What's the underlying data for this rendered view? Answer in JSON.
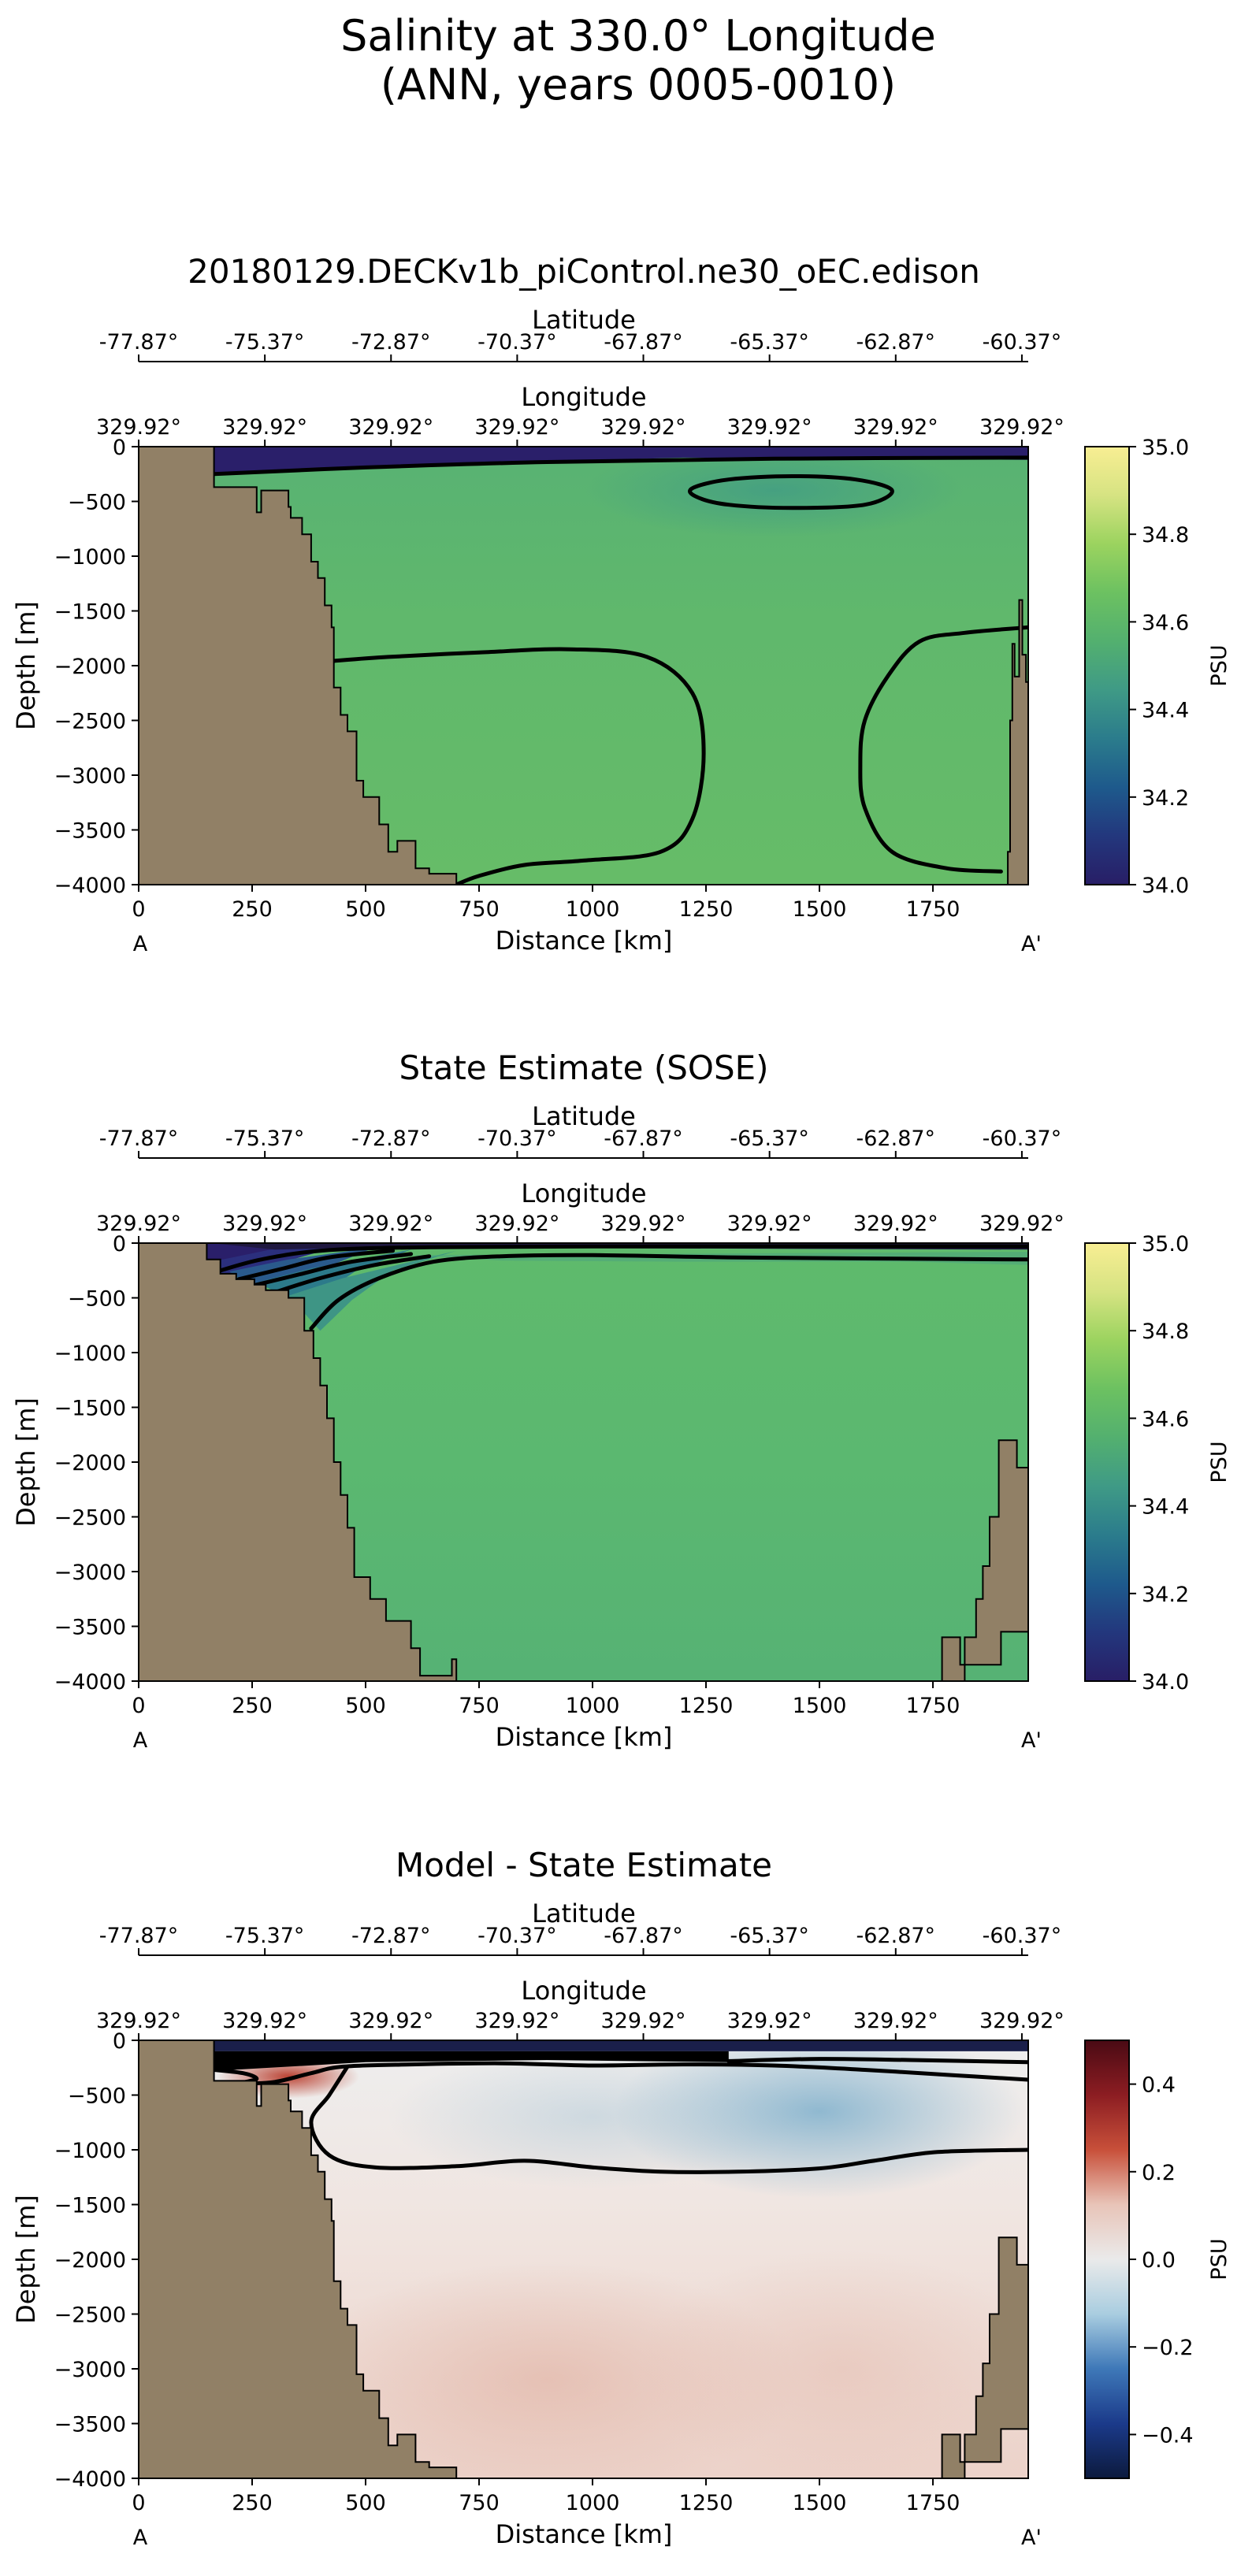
{
  "suptitle": [
    "Salinity at 330.0° Longitude",
    "(ANN, years 0005-0010)"
  ],
  "colors": {
    "bathymetry": "#918066",
    "topo_ocean_cmap": [
      "#281e66",
      "#23377d",
      "#1e5a8c",
      "#2b7c8c",
      "#3f9a86",
      "#53b06f",
      "#6cc161",
      "#9bd35f",
      "#d6e382",
      "#f8ee93"
    ],
    "diff_cmap": [
      "#0c1a3d",
      "#1b3a8a",
      "#3e78b8",
      "#a9cde0",
      "#eaeaea",
      "#e8c4b8",
      "#c8503a",
      "#8c1d22",
      "#4a0a14"
    ]
  },
  "chart_data": [
    {
      "type": "heatmap",
      "title": "20180129.DECKv1b_piControl.ne30_oEC.edison",
      "xlabel": "Distance [km]",
      "ylabel": "Depth [m]",
      "top_axis1_label": "Latitude",
      "top_axis2_label": "Longitude",
      "xlim": [
        0,
        1960
      ],
      "ylim": [
        -4000,
        0
      ],
      "xticks": [
        "0",
        "250",
        "500",
        "750",
        "1000",
        "1250",
        "1500",
        "1750"
      ],
      "yticks": [
        "0",
        "−500",
        "−1000",
        "−1500",
        "−2000",
        "−2500",
        "−3000",
        "−3500",
        "−4000"
      ],
      "lat_ticks": [
        "-77.87°",
        "-75.37°",
        "-72.87°",
        "-70.37°",
        "-67.87°",
        "-65.37°",
        "-62.87°",
        "-60.37°"
      ],
      "lon_ticks": [
        "329.92°",
        "329.92°",
        "329.92°",
        "329.92°",
        "329.92°",
        "329.92°",
        "329.92°",
        "329.92°"
      ],
      "section_start": "A",
      "section_end": "A'",
      "colorbar": {
        "label": "PSU",
        "range": [
          34.0,
          35.0
        ],
        "ticks": [
          "34.0",
          "34.2",
          "34.4",
          "34.6",
          "34.8",
          "35.0"
        ],
        "tick_values": [
          34.0,
          34.2,
          34.4,
          34.6,
          34.8,
          35.0
        ]
      }
    },
    {
      "type": "heatmap",
      "title": "State Estimate (SOSE)",
      "xlabel": "Distance [km]",
      "ylabel": "Depth [m]",
      "top_axis1_label": "Latitude",
      "top_axis2_label": "Longitude",
      "xlim": [
        0,
        1960
      ],
      "ylim": [
        -4000,
        0
      ],
      "xticks": [
        "0",
        "250",
        "500",
        "750",
        "1000",
        "1250",
        "1500",
        "1750"
      ],
      "yticks": [
        "0",
        "−500",
        "−1000",
        "−1500",
        "−2000",
        "−2500",
        "−3000",
        "−3500",
        "−4000"
      ],
      "lat_ticks": [
        "-77.87°",
        "-75.37°",
        "-72.87°",
        "-70.37°",
        "-67.87°",
        "-65.37°",
        "-62.87°",
        "-60.37°"
      ],
      "lon_ticks": [
        "329.92°",
        "329.92°",
        "329.92°",
        "329.92°",
        "329.92°",
        "329.92°",
        "329.92°",
        "329.92°"
      ],
      "section_start": "A",
      "section_end": "A'",
      "colorbar": {
        "label": "PSU",
        "range": [
          34.0,
          35.0
        ],
        "ticks": [
          "34.0",
          "34.2",
          "34.4",
          "34.6",
          "34.8",
          "35.0"
        ],
        "tick_values": [
          34.0,
          34.2,
          34.4,
          34.6,
          34.8,
          35.0
        ]
      }
    },
    {
      "type": "heatmap",
      "title": "Model - State Estimate",
      "xlabel": "Distance [km]",
      "ylabel": "Depth [m]",
      "top_axis1_label": "Latitude",
      "top_axis2_label": "Longitude",
      "xlim": [
        0,
        1960
      ],
      "ylim": [
        -4000,
        0
      ],
      "xticks": [
        "0",
        "250",
        "500",
        "750",
        "1000",
        "1250",
        "1500",
        "1750"
      ],
      "yticks": [
        "0",
        "−500",
        "−1000",
        "−1500",
        "−2000",
        "−2500",
        "−3000",
        "−3500",
        "−4000"
      ],
      "lat_ticks": [
        "-77.87°",
        "-75.37°",
        "-72.87°",
        "-70.37°",
        "-67.87°",
        "-65.37°",
        "-62.87°",
        "-60.37°"
      ],
      "lon_ticks": [
        "329.92°",
        "329.92°",
        "329.92°",
        "329.92°",
        "329.92°",
        "329.92°",
        "329.92°",
        "329.92°"
      ],
      "section_start": "A",
      "section_end": "A'",
      "colorbar": {
        "label": "PSU",
        "range": [
          -0.5,
          0.5
        ],
        "ticks": [
          "0.4",
          "0.2",
          "0.0",
          "−0.2",
          "−0.4"
        ],
        "tick_values": [
          0.4,
          0.2,
          0.0,
          -0.2,
          -0.4
        ]
      }
    }
  ]
}
